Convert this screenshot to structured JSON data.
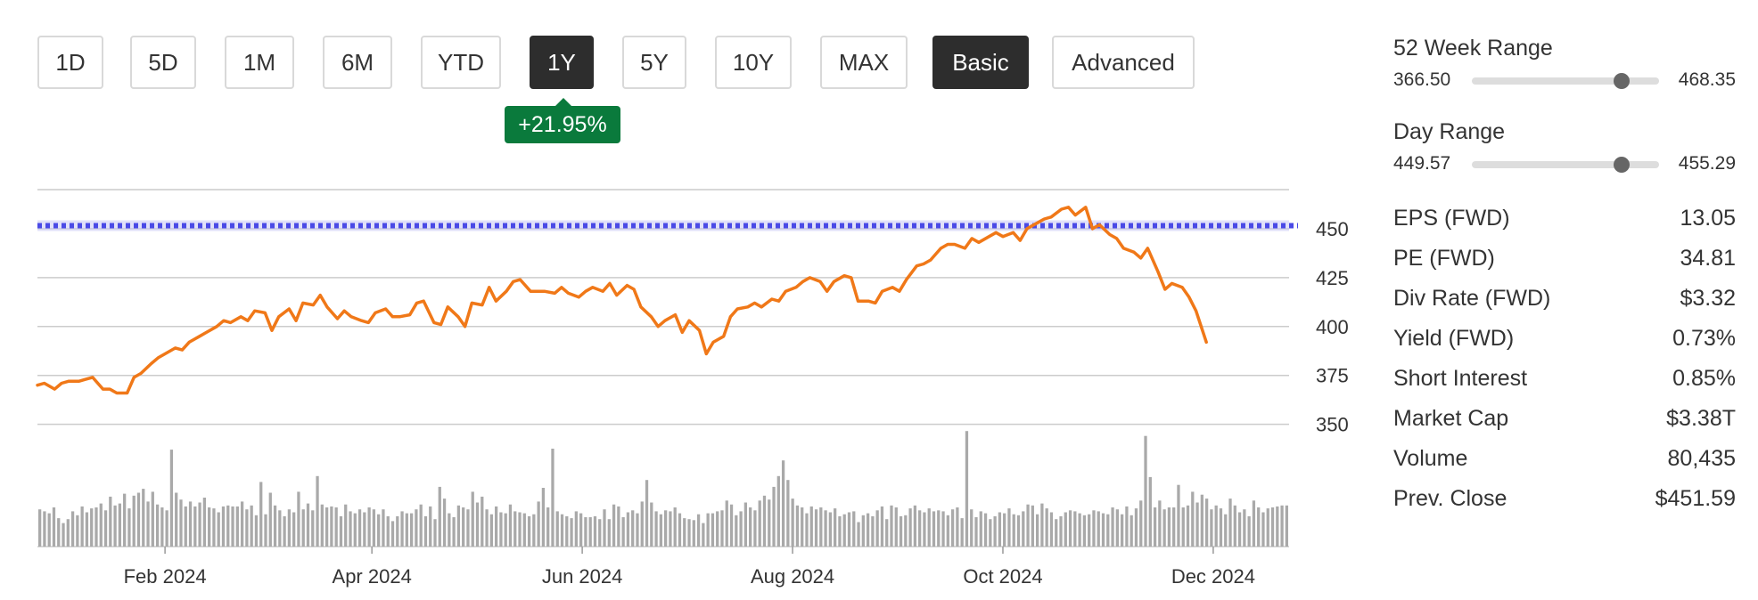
{
  "toolbar": {
    "buttons": [
      {
        "label": "1D",
        "active": false
      },
      {
        "label": "5D",
        "active": false
      },
      {
        "label": "1M",
        "active": false
      },
      {
        "label": "6M",
        "active": false
      },
      {
        "label": "YTD",
        "active": false
      },
      {
        "label": "1Y",
        "active": true
      },
      {
        "label": "5Y",
        "active": false
      },
      {
        "label": "10Y",
        "active": false
      },
      {
        "label": "MAX",
        "active": false
      },
      {
        "label": "Basic",
        "active": true
      },
      {
        "label": "Advanced",
        "active": false
      }
    ]
  },
  "change_badge": "+21.95%",
  "colors": {
    "price_line": "#f07818",
    "reference_line": "#4a4ae6",
    "volume_bar": "#a9a9a9",
    "grid": "#cccccc",
    "badge_positive": "#0a7a3c",
    "active_button": "#2d2d2d"
  },
  "chart_data": {
    "type": "line",
    "title": "",
    "xlabel": "",
    "ylabel": "",
    "ylim": [
      343,
      470
    ],
    "y_ticks": [
      "450",
      "425",
      "400",
      "375",
      "350"
    ],
    "y_tick_values": [
      450,
      425,
      400,
      375,
      350
    ],
    "x_ticks": [
      "Feb 2024",
      "Apr 2024",
      "Jun 2024",
      "Aug 2024",
      "Oct 2024",
      "Dec 2024"
    ],
    "x_tick_dates": [
      "2024-02-01",
      "2024-04-01",
      "2024-06-01",
      "2024-08-01",
      "2024-10-01",
      "2024-12-01"
    ],
    "x_range": [
      "2023-12-26",
      "2024-12-23"
    ],
    "reference_line": 451.59,
    "grid": true,
    "series": [
      {
        "points": [
          [
            "2023-12-26",
            370
          ],
          [
            "2023-12-28",
            371
          ],
          [
            "2023-12-31",
            368
          ],
          [
            "2024-01-02",
            371
          ],
          [
            "2024-01-04",
            372
          ],
          [
            "2024-01-07",
            372
          ],
          [
            "2024-01-09",
            373
          ],
          [
            "2024-01-11",
            374
          ],
          [
            "2024-01-14",
            368
          ],
          [
            "2024-01-16",
            368
          ],
          [
            "2024-01-18",
            366
          ],
          [
            "2024-01-21",
            366
          ],
          [
            "2024-01-23",
            374
          ],
          [
            "2024-01-25",
            376
          ],
          [
            "2024-01-28",
            381
          ],
          [
            "2024-01-30",
            384
          ],
          [
            "2024-02-01",
            386
          ],
          [
            "2024-02-04",
            389
          ],
          [
            "2024-02-06",
            388
          ],
          [
            "2024-02-08",
            392
          ],
          [
            "2024-02-11",
            395
          ],
          [
            "2024-02-13",
            397
          ],
          [
            "2024-02-16",
            400
          ],
          [
            "2024-02-18",
            403
          ],
          [
            "2024-02-20",
            402
          ],
          [
            "2024-02-23",
            405
          ],
          [
            "2024-02-25",
            403
          ],
          [
            "2024-02-27",
            408
          ],
          [
            "2024-03-01",
            407
          ],
          [
            "2024-03-03",
            398
          ],
          [
            "2024-03-05",
            405
          ],
          [
            "2024-03-08",
            409
          ],
          [
            "2024-03-10",
            403
          ],
          [
            "2024-03-12",
            412
          ],
          [
            "2024-03-15",
            411
          ],
          [
            "2024-03-17",
            416
          ],
          [
            "2024-03-19",
            410
          ],
          [
            "2024-03-22",
            404
          ],
          [
            "2024-03-24",
            408
          ],
          [
            "2024-03-26",
            405
          ],
          [
            "2024-03-29",
            403
          ],
          [
            "2024-03-31",
            402
          ],
          [
            "2024-04-02",
            407
          ],
          [
            "2024-04-05",
            409
          ],
          [
            "2024-04-07",
            405
          ],
          [
            "2024-04-09",
            405
          ],
          [
            "2024-04-12",
            406
          ],
          [
            "2024-04-14",
            412
          ],
          [
            "2024-04-16",
            413
          ],
          [
            "2024-04-19",
            402
          ],
          [
            "2024-04-21",
            401
          ],
          [
            "2024-04-23",
            410
          ],
          [
            "2024-04-26",
            405
          ],
          [
            "2024-04-28",
            400
          ],
          [
            "2024-04-30",
            412
          ],
          [
            "2024-05-03",
            411
          ],
          [
            "2024-05-05",
            420
          ],
          [
            "2024-05-07",
            413
          ],
          [
            "2024-05-10",
            418
          ],
          [
            "2024-05-12",
            423
          ],
          [
            "2024-05-14",
            424
          ],
          [
            "2024-05-17",
            418
          ],
          [
            "2024-05-19",
            418
          ],
          [
            "2024-05-21",
            418
          ],
          [
            "2024-05-24",
            417
          ],
          [
            "2024-05-26",
            420
          ],
          [
            "2024-05-28",
            417
          ],
          [
            "2024-05-31",
            415
          ],
          [
            "2024-06-02",
            418
          ],
          [
            "2024-06-04",
            420
          ],
          [
            "2024-06-07",
            418
          ],
          [
            "2024-06-09",
            422
          ],
          [
            "2024-06-11",
            416
          ],
          [
            "2024-06-14",
            421
          ],
          [
            "2024-06-16",
            419
          ],
          [
            "2024-06-18",
            410
          ],
          [
            "2024-06-21",
            405
          ],
          [
            "2024-06-23",
            400
          ],
          [
            "2024-06-25",
            403
          ],
          [
            "2024-06-28",
            406
          ],
          [
            "2024-06-30",
            397
          ],
          [
            "2024-07-02",
            403
          ],
          [
            "2024-07-05",
            398
          ],
          [
            "2024-07-07",
            386
          ],
          [
            "2024-07-09",
            392
          ],
          [
            "2024-07-12",
            395
          ],
          [
            "2024-07-14",
            405
          ],
          [
            "2024-07-16",
            409
          ],
          [
            "2024-07-19",
            410
          ],
          [
            "2024-07-21",
            412
          ],
          [
            "2024-07-23",
            410
          ],
          [
            "2024-07-26",
            414
          ],
          [
            "2024-07-28",
            413
          ],
          [
            "2024-07-30",
            418
          ],
          [
            "2024-08-02",
            420
          ],
          [
            "2024-08-04",
            423
          ],
          [
            "2024-08-06",
            425
          ],
          [
            "2024-08-09",
            423
          ],
          [
            "2024-08-11",
            418
          ],
          [
            "2024-08-13",
            423
          ],
          [
            "2024-08-16",
            426
          ],
          [
            "2024-08-18",
            425
          ],
          [
            "2024-08-20",
            413
          ],
          [
            "2024-08-23",
            413
          ],
          [
            "2024-08-25",
            412
          ],
          [
            "2024-08-27",
            418
          ],
          [
            "2024-08-30",
            420
          ],
          [
            "2024-09-01",
            418
          ],
          [
            "2024-09-03",
            424
          ],
          [
            "2024-09-06",
            431
          ],
          [
            "2024-09-08",
            432
          ],
          [
            "2024-09-10",
            434
          ],
          [
            "2024-09-13",
            440
          ],
          [
            "2024-09-15",
            442
          ],
          [
            "2024-09-17",
            442
          ],
          [
            "2024-09-20",
            440
          ],
          [
            "2024-09-22",
            445
          ],
          [
            "2024-09-24",
            443
          ],
          [
            "2024-09-27",
            446
          ],
          [
            "2024-09-29",
            448
          ],
          [
            "2024-10-01",
            446
          ],
          [
            "2024-10-04",
            448
          ],
          [
            "2024-10-06",
            444
          ],
          [
            "2024-10-08",
            450
          ],
          [
            "2024-10-11",
            453
          ],
          [
            "2024-10-13",
            455
          ],
          [
            "2024-10-15",
            456
          ],
          [
            "2024-10-18",
            460
          ],
          [
            "2024-10-20",
            461
          ],
          [
            "2024-10-22",
            457
          ],
          [
            "2024-10-25",
            461
          ],
          [
            "2024-10-27",
            450
          ],
          [
            "2024-10-29",
            452
          ],
          [
            "2024-11-01",
            447
          ],
          [
            "2024-11-03",
            445
          ],
          [
            "2024-11-05",
            440
          ],
          [
            "2024-11-08",
            438
          ],
          [
            "2024-11-10",
            435
          ],
          [
            "2024-11-12",
            440
          ],
          [
            "2024-11-15",
            428
          ],
          [
            "2024-11-17",
            419
          ],
          [
            "2024-11-19",
            422
          ],
          [
            "2024-11-22",
            420
          ],
          [
            "2024-11-24",
            415
          ],
          [
            "2024-11-26",
            408
          ],
          [
            "2024-11-29",
            392
          ]
        ]
      }
    ],
    "volume_relative": [
      0.38,
      0.36,
      0.34,
      0.4,
      0.29,
      0.24,
      0.28,
      0.36,
      0.32,
      0.41,
      0.35,
      0.39,
      0.4,
      0.44,
      0.37,
      0.51,
      0.42,
      0.44,
      0.54,
      0.39,
      0.52,
      0.55,
      0.59,
      0.46,
      0.56,
      0.43,
      0.4,
      0.37,
      0.99,
      0.55,
      0.48,
      0.41,
      0.46,
      0.41,
      0.45,
      0.5,
      0.4,
      0.39,
      0.35,
      0.41,
      0.42,
      0.41,
      0.41,
      0.46,
      0.38,
      0.42,
      0.32,
      0.66,
      0.33,
      0.55,
      0.42,
      0.37,
      0.31,
      0.38,
      0.35,
      0.56,
      0.38,
      0.44,
      0.37,
      0.72,
      0.43,
      0.4,
      0.41,
      0.4,
      0.31,
      0.43,
      0.36,
      0.34,
      0.38,
      0.35,
      0.4,
      0.38,
      0.33,
      0.38,
      0.31,
      0.26,
      0.31,
      0.36,
      0.34,
      0.34,
      0.38,
      0.43,
      0.31,
      0.41,
      0.28,
      0.61,
      0.49,
      0.34,
      0.3,
      0.42,
      0.4,
      0.38,
      0.56,
      0.45,
      0.51,
      0.38,
      0.33,
      0.41,
      0.35,
      0.34,
      0.43,
      0.36,
      0.35,
      0.34,
      0.31,
      0.33,
      0.46,
      0.6,
      0.4,
      1.0,
      0.36,
      0.33,
      0.31,
      0.29,
      0.36,
      0.34,
      0.3,
      0.3,
      0.31,
      0.28,
      0.38,
      0.28,
      0.43,
      0.41,
      0.3,
      0.35,
      0.37,
      0.34,
      0.46,
      0.68,
      0.45,
      0.36,
      0.33,
      0.37,
      0.36,
      0.4,
      0.34,
      0.29,
      0.28,
      0.27,
      0.33,
      0.24,
      0.34,
      0.34,
      0.36,
      0.37,
      0.47,
      0.43,
      0.32,
      0.36,
      0.45,
      0.4,
      0.37,
      0.47,
      0.52,
      0.48,
      0.61,
      0.72,
      0.88,
      0.68,
      0.49,
      0.42,
      0.4,
      0.34,
      0.41,
      0.38,
      0.4,
      0.37,
      0.35,
      0.39,
      0.31,
      0.33,
      0.35,
      0.36,
      0.25,
      0.32,
      0.34,
      0.31,
      0.37,
      0.41,
      0.28,
      0.42,
      0.4,
      0.31,
      0.32,
      0.39,
      0.42,
      0.37,
      0.35,
      0.39,
      0.36,
      0.37,
      0.36,
      0.32,
      0.38,
      0.4,
      0.29,
      1.18,
      0.38,
      0.3,
      0.36,
      0.34,
      0.28,
      0.31,
      0.35,
      0.34,
      0.39,
      0.33,
      0.32,
      0.36,
      0.43,
      0.42,
      0.33,
      0.44,
      0.39,
      0.35,
      0.28,
      0.31,
      0.35,
      0.37,
      0.36,
      0.34,
      0.32,
      0.33,
      0.37,
      0.36,
      0.34,
      0.33,
      0.4,
      0.38,
      0.33,
      0.41,
      0.32,
      0.39,
      0.47,
      1.13,
      0.71,
      0.4,
      0.47,
      0.38,
      0.4,
      0.4,
      0.63,
      0.4,
      0.42,
      0.56,
      0.45,
      0.53,
      0.49,
      0.38,
      0.42,
      0.39,
      0.33,
      0.49,
      0.42,
      0.35,
      0.38,
      0.31,
      0.47,
      0.4,
      0.35,
      0.39,
      0.4,
      0.41,
      0.42,
      0.42
    ]
  },
  "stats": {
    "week52": {
      "title": "52 Week Range",
      "low": "366.50",
      "high": "468.35",
      "position": 0.8
    },
    "day": {
      "title": "Day Range",
      "low": "449.57",
      "high": "455.29",
      "position": 0.8
    },
    "rows": [
      {
        "label": "EPS (FWD)",
        "value": "13.05"
      },
      {
        "label": "PE (FWD)",
        "value": "34.81"
      },
      {
        "label": "Div Rate (FWD)",
        "value": "$3.32"
      },
      {
        "label": "Yield (FWD)",
        "value": "0.73%"
      },
      {
        "label": "Short Interest",
        "value": "0.85%"
      },
      {
        "label": "Market Cap",
        "value": "$3.38T"
      },
      {
        "label": "Volume",
        "value": "80,435"
      },
      {
        "label": "Prev. Close",
        "value": "$451.59"
      }
    ]
  }
}
